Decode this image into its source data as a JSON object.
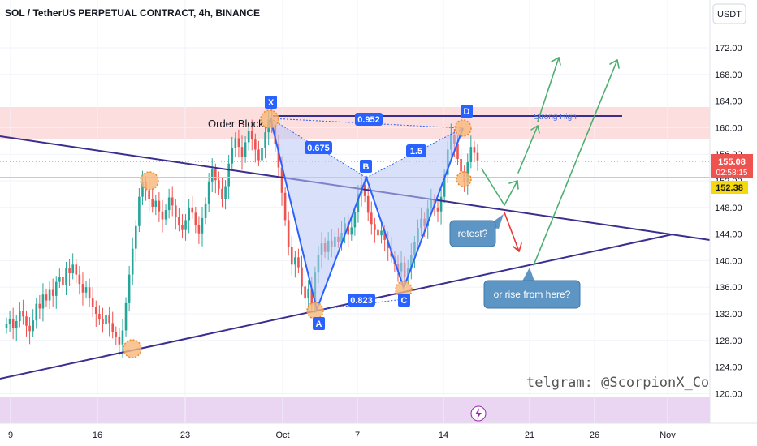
{
  "chart_data": {
    "type": "candlestick",
    "title": "SOL / TetherUS PERPETUAL CONTRACT, 4h, BINANCE",
    "currency_button": "USDT",
    "y_ticks": [
      "172.00",
      "168.00",
      "164.00",
      "160.00",
      "156.00",
      "152.00",
      "148.00",
      "144.00",
      "140.00",
      "136.00",
      "132.00",
      "128.00",
      "124.00",
      "120.00"
    ],
    "x_ticks": [
      "9",
      "16",
      "23",
      "Oct",
      "7",
      "14",
      "21",
      "26",
      "Nov"
    ],
    "ylim": [
      118.5,
      174.5
    ],
    "price_labels": {
      "last": "155.08",
      "countdown": "02:58:15",
      "level": "152.38"
    },
    "colors": {
      "up": "#26a69a",
      "down": "#ef5350",
      "trendline": "#3a2f8f",
      "pattern": "#2962ff",
      "zone": "#f8c6c6",
      "level": "#f5d90a",
      "arrow_up": "#4caf70",
      "arrow_down": "#e53935",
      "callout": "#5d95c4",
      "bottom_band": "#e8d3f0"
    },
    "pattern_points": [
      {
        "name": "X",
        "value": 161.8
      },
      {
        "name": "A",
        "value": 133.0
      },
      {
        "name": "B",
        "value": 152.2
      },
      {
        "name": "C",
        "value": 136.0
      },
      {
        "name": "D",
        "value": 160.8
      }
    ],
    "pattern_ratios": [
      "0.952",
      "0.675",
      "1.5",
      "0.823"
    ],
    "annotations": {
      "order_block": "Order Block",
      "strong_high": "Strong High",
      "retest": "retest?",
      "rise": "or rise from here?",
      "telegram": "telgram: @ScorpionX_Co"
    },
    "closes": [
      130.5,
      131.2,
      129.8,
      130.9,
      132.4,
      131.6,
      130.2,
      129.4,
      131.0,
      133.5,
      132.8,
      134.9,
      134.0,
      135.6,
      134.7,
      136.8,
      137.5,
      136.4,
      138.9,
      138.1,
      139.4,
      137.9,
      136.5,
      135.2,
      136.0,
      134.3,
      133.1,
      132.0,
      131.2,
      130.4,
      131.8,
      130.6,
      129.2,
      128.6,
      127.4,
      129.5,
      133.6,
      137.9,
      141.8,
      145.2,
      149.6,
      151.8,
      150.6,
      149.3,
      148.1,
      149.0,
      147.4,
      146.2,
      147.6,
      149.5,
      148.3,
      146.6,
      145.3,
      144.6,
      146.1,
      148.0,
      147.2,
      145.4,
      144.1,
      146.4,
      148.6,
      151.9,
      153.7,
      152.1,
      150.8,
      149.3,
      151.2,
      154.6,
      156.9,
      158.4,
      157.1,
      155.6,
      157.8,
      159.5,
      158.2,
      156.7,
      155.1,
      157.0,
      159.3,
      161.2,
      160.1,
      157.6,
      154.0,
      150.2,
      146.1,
      142.0,
      139.4,
      140.5,
      139.0,
      136.1,
      134.3,
      135.8,
      133.4,
      138.2,
      140.9,
      142.6,
      141.3,
      143.0,
      142.1,
      143.6,
      142.8,
      144.2,
      145.6,
      143.9,
      145.0,
      147.3,
      150.1,
      151.4,
      149.7,
      147.2,
      145.5,
      144.6,
      143.8,
      144.5,
      143.1,
      141.9,
      140.6,
      139.5,
      138.4,
      139.7,
      137.6,
      138.8,
      140.9,
      142.8,
      144.9,
      146.3,
      145.2,
      147.8,
      149.1,
      148.0,
      147.4,
      149.6,
      152.9,
      156.7,
      158.9,
      157.6,
      155.3,
      153.4,
      151.9,
      154.8,
      157.1,
      156.2,
      155.08
    ]
  }
}
